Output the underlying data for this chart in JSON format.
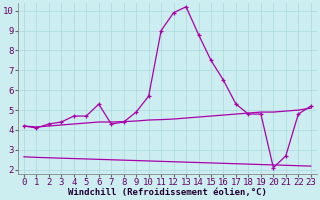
{
  "xlabel": "Windchill (Refroidissement éolien,°C)",
  "bg_color": "#cdeef0",
  "grid_color": "#aad8dc",
  "line_color": "#aa00aa",
  "xlim": [
    -0.5,
    23.5
  ],
  "ylim": [
    1.8,
    10.4
  ],
  "yticks": [
    2,
    3,
    4,
    5,
    6,
    7,
    8,
    9,
    10
  ],
  "xticks": [
    0,
    1,
    2,
    3,
    4,
    5,
    6,
    7,
    8,
    9,
    10,
    11,
    12,
    13,
    14,
    15,
    16,
    17,
    18,
    19,
    20,
    21,
    22,
    23
  ],
  "line1_x": [
    0,
    1,
    2,
    3,
    4,
    5,
    6,
    7,
    8,
    9,
    10,
    11,
    12,
    13,
    14,
    15,
    16,
    17,
    18,
    19,
    20,
    21,
    22,
    23
  ],
  "line1_y": [
    4.2,
    4.1,
    4.3,
    4.4,
    4.7,
    4.7,
    5.3,
    4.3,
    4.4,
    4.9,
    5.7,
    9.0,
    9.9,
    10.2,
    8.8,
    7.5,
    6.5,
    5.3,
    4.8,
    4.8,
    2.1,
    2.7,
    4.8,
    5.2
  ],
  "line2_x": [
    0,
    1,
    2,
    3,
    4,
    5,
    6,
    7,
    8,
    9,
    10,
    11,
    12,
    13,
    14,
    15,
    16,
    17,
    18,
    19,
    20,
    21,
    22,
    23
  ],
  "line2_y": [
    4.2,
    4.15,
    4.2,
    4.25,
    4.3,
    4.35,
    4.4,
    4.4,
    4.42,
    4.45,
    4.5,
    4.52,
    4.55,
    4.6,
    4.65,
    4.7,
    4.75,
    4.8,
    4.85,
    4.9,
    4.9,
    4.95,
    5.0,
    5.1
  ],
  "line3_x": [
    0,
    1,
    2,
    3,
    4,
    5,
    6,
    7,
    8,
    9,
    10,
    11,
    12,
    13,
    14,
    15,
    16,
    17,
    18,
    19,
    20,
    21,
    22,
    23
  ],
  "line3_y": [
    2.65,
    2.62,
    2.6,
    2.58,
    2.56,
    2.54,
    2.52,
    2.5,
    2.48,
    2.46,
    2.44,
    2.42,
    2.4,
    2.38,
    2.36,
    2.34,
    2.32,
    2.3,
    2.28,
    2.26,
    2.24,
    2.22,
    2.2,
    2.18
  ],
  "xlabel_fontsize": 6.5,
  "tick_fontsize": 6.5,
  "tick_color": "#660066"
}
